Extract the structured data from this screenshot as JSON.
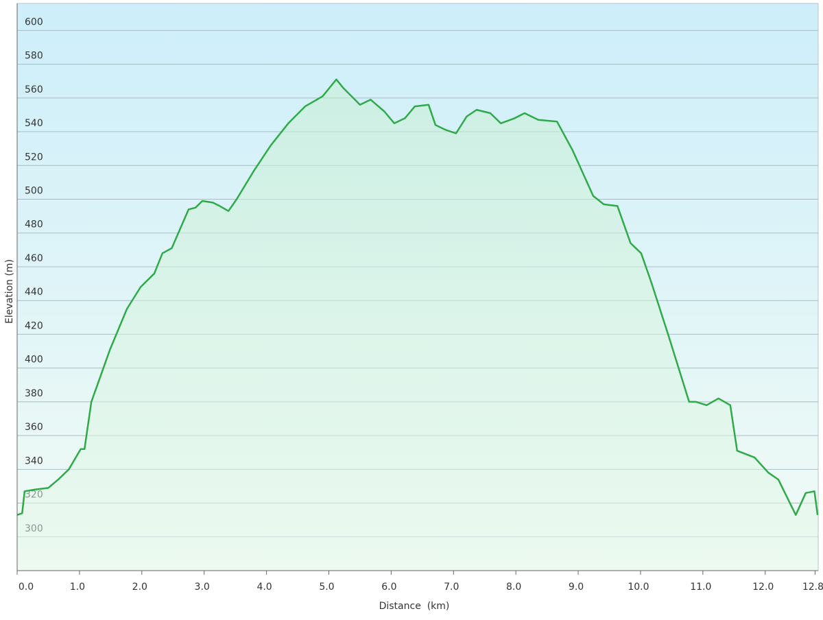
{
  "chart_data": {
    "type": "line",
    "x_label": "Distance  (km)",
    "y_label": "Elevation (m)",
    "x": [
      0,
      0.08,
      0.12,
      0.28,
      0.5,
      0.66,
      0.83,
      1.02,
      1.08,
      1.19,
      1.49,
      1.76,
      1.98,
      2.2,
      2.33,
      2.48,
      2.61,
      2.75,
      2.86,
      2.97,
      3.14,
      3.25,
      3.39,
      3.52,
      3.8,
      4.07,
      4.35,
      4.62,
      4.9,
      5.12,
      5.23,
      5.5,
      5.67,
      5.89,
      6.05,
      6.22,
      6.38,
      6.6,
      6.71,
      6.88,
      7.04,
      7.21,
      7.37,
      7.59,
      7.76,
      7.98,
      8.14,
      8.36,
      8.66,
      8.91,
      9.24,
      9.41,
      9.63,
      9.84,
      10.01,
      10.18,
      10.45,
      10.78,
      10.89,
      11.06,
      11.25,
      11.44,
      11.55,
      11.83,
      12.05,
      12.21,
      12.49,
      12.65,
      12.79,
      12.84
    ],
    "values": [
      313,
      314,
      327,
      328,
      329,
      334,
      340,
      352,
      352,
      380,
      411,
      435,
      448,
      456,
      468,
      471,
      482,
      494,
      495,
      499,
      498,
      496,
      493,
      500,
      517,
      532,
      545,
      555,
      561,
      571,
      566,
      556,
      559,
      552,
      545,
      548,
      555,
      556,
      544,
      541,
      539,
      549,
      553,
      551,
      545,
      548,
      551,
      547,
      546,
      529,
      502,
      497,
      496,
      474,
      468,
      450,
      419,
      380,
      380,
      378,
      382,
      378,
      351,
      347,
      338,
      334,
      313,
      326,
      327,
      313
    ],
    "color": "#2eaa48",
    "xlim": [
      0,
      12.85
    ],
    "ylim": [
      280,
      616
    ],
    "xticks": [
      {
        "value": 0,
        "label": "0.0"
      },
      {
        "value": 1,
        "label": "1.0"
      },
      {
        "value": 2,
        "label": "2.0"
      },
      {
        "value": 3,
        "label": "3.0"
      },
      {
        "value": 4,
        "label": "4.0"
      },
      {
        "value": 5,
        "label": "5.0"
      },
      {
        "value": 6,
        "label": "6.0"
      },
      {
        "value": 7,
        "label": "7.0"
      },
      {
        "value": 8,
        "label": "8.0"
      },
      {
        "value": 9,
        "label": "9.0"
      },
      {
        "value": 10,
        "label": "10.0"
      },
      {
        "value": 11,
        "label": "11.0"
      },
      {
        "value": 12,
        "label": "12.0"
      },
      12.8
    ],
    "yticks": [
      300,
      320,
      340,
      360,
      380,
      400,
      420,
      440,
      460,
      480,
      500,
      520,
      540,
      560,
      580,
      600
    ],
    "grid": true
  }
}
